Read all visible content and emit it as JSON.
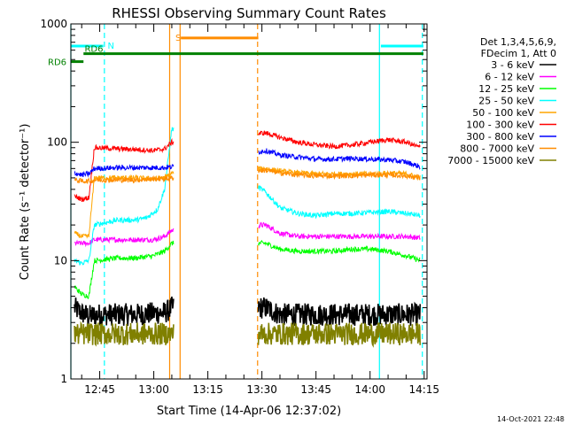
{
  "chart_data": {
    "type": "line",
    "title": "RHESSI Observing Summary Count Rates",
    "xlabel": "Start Time (14-Apr-06 12:37:02)",
    "ylabel": "Count Rate (s⁻¹ detector⁻¹)",
    "yscale": "log",
    "ylim": [
      1,
      1000
    ],
    "xlim_minutes": [
      37.0,
      135.8
    ],
    "x_tick_labels": [
      "12:45",
      "13:00",
      "13:15",
      "13:30",
      "13:45",
      "14:00",
      "14:15"
    ],
    "x_tick_minutes": [
      45,
      60,
      75,
      90,
      105,
      120,
      135
    ],
    "y_tick_labels": [
      "1",
      "10",
      "100",
      "1000"
    ],
    "y_tick_values": [
      1,
      10,
      100,
      1000
    ],
    "legend_header": [
      "Det 1,3,4,5,6,9,",
      "FDecim 1, Att 0"
    ],
    "legend_position": "right",
    "timestamp": "14-Oct-2021 22:48",
    "data_gaps_minutes": [
      [
        65.5,
        89.0
      ]
    ],
    "series": [
      {
        "name": "3 - 6 keV",
        "color": "#000000",
        "x": [
          38,
          40,
          42,
          45,
          50,
          55,
          60,
          63,
          65,
          91,
          95,
          100,
          105,
          110,
          115,
          120,
          125,
          130,
          134
        ],
        "y": [
          4.0,
          3.6,
          3.4,
          3.5,
          3.5,
          3.5,
          3.6,
          3.6,
          4.0,
          4.0,
          3.5,
          3.5,
          3.5,
          3.5,
          3.5,
          3.5,
          3.5,
          3.5,
          3.5
        ]
      },
      {
        "name": "6 - 12 keV",
        "color": "#ff00ff",
        "x": [
          38,
          42,
          43.5,
          50,
          55,
          60,
          63,
          65,
          91,
          95,
          100,
          105,
          110,
          115,
          120,
          125,
          130,
          134
        ],
        "y": [
          14,
          14,
          15,
          15,
          15,
          15,
          16,
          18,
          20,
          17,
          16,
          16,
          16,
          16,
          16,
          16,
          16,
          15.5
        ]
      },
      {
        "name": "12 - 25 keV",
        "color": "#00ff00",
        "x": [
          38,
          40,
          42,
          43.5,
          50,
          55,
          60,
          63,
          65,
          91,
          95,
          100,
          105,
          110,
          115,
          120,
          125,
          130,
          134
        ],
        "y": [
          6,
          5.2,
          5.0,
          10,
          10.5,
          10.5,
          11,
          12,
          14,
          14,
          12.5,
          12,
          12,
          12,
          12.5,
          12.5,
          12,
          11,
          10
        ]
      },
      {
        "name": "25 - 50 keV",
        "color": "#00ffff",
        "x": [
          38,
          40,
          42,
          43.5,
          50,
          55,
          58,
          61,
          63,
          65,
          91,
          95,
          100,
          105,
          110,
          115,
          120,
          125,
          130,
          134
        ],
        "y": [
          10,
          9.5,
          10,
          20,
          22,
          22,
          23,
          27,
          40,
          130,
          38,
          28,
          25,
          24,
          25,
          25,
          25.5,
          26,
          25,
          24
        ]
      },
      {
        "name": "50 - 100 keV",
        "color": "#ffa500",
        "x": [
          38,
          40,
          42,
          43.5,
          50,
          55,
          60,
          63,
          65,
          91,
          95,
          100,
          105,
          110,
          115,
          120,
          125,
          130,
          134
        ],
        "y": [
          17,
          16,
          16,
          50,
          50,
          50,
          49,
          50,
          55,
          60,
          57,
          55,
          54,
          54,
          54,
          54,
          55,
          54,
          50
        ]
      },
      {
        "name": "100 - 300 keV",
        "color": "#ff0000",
        "x": [
          38,
          40,
          42,
          43.5,
          50,
          55,
          60,
          63,
          65,
          91,
          95,
          100,
          105,
          110,
          115,
          120,
          125,
          130,
          134
        ],
        "y": [
          35,
          33,
          34,
          90,
          88,
          87,
          85,
          88,
          100,
          120,
          110,
          100,
          95,
          92,
          95,
          100,
          105,
          100,
          90
        ]
      },
      {
        "name": "300 - 800 keV",
        "color": "#0000ff",
        "x": [
          38,
          40,
          42,
          43.5,
          50,
          55,
          60,
          63,
          65,
          91,
          95,
          100,
          105,
          110,
          115,
          120,
          125,
          130,
          134
        ],
        "y": [
          55,
          53,
          54,
          60,
          61,
          61,
          61,
          61,
          62,
          85,
          78,
          75,
          72,
          72,
          73,
          72,
          71,
          68,
          62
        ]
      },
      {
        "name": "800 - 7000 keV",
        "color": "#ff8c00",
        "x": [
          38,
          40,
          42,
          43.5,
          50,
          55,
          60,
          63,
          65,
          91,
          95,
          100,
          105,
          110,
          115,
          120,
          125,
          130,
          134
        ],
        "y": [
          48,
          47,
          47,
          48,
          48,
          48,
          49,
          49,
          50,
          58,
          55,
          53,
          52,
          52,
          52,
          53,
          53,
          52,
          50
        ]
      },
      {
        "name": "7000 - 15000 keV",
        "color": "#808000",
        "x": [
          38,
          40,
          42,
          45,
          50,
          55,
          60,
          63,
          65,
          91,
          95,
          100,
          105,
          110,
          115,
          120,
          125,
          130,
          134
        ],
        "y": [
          2.4,
          2.4,
          2.4,
          2.4,
          2.4,
          2.4,
          2.4,
          2.4,
          2.4,
          2.4,
          2.4,
          2.4,
          2.4,
          2.4,
          2.4,
          2.4,
          2.4,
          2.4,
          2.4
        ]
      }
    ],
    "state_bars": [
      {
        "label": "N",
        "color": "#00ffff",
        "y": 650,
        "segments": [
          [
            37.0,
            46.0
          ],
          [
            123.0,
            134.8
          ]
        ]
      },
      {
        "label": "S",
        "color": "#ff8c00",
        "y": 760,
        "segments": [
          [
            67.5,
            89.0
          ]
        ]
      },
      {
        "label": "RD6",
        "color": "#008000",
        "y": 560,
        "segments": [
          [
            40.5,
            134.8
          ]
        ]
      },
      {
        "label": "RD6",
        "color": "#008000",
        "y": 480,
        "segments": [
          [
            37.0,
            40.5
          ]
        ]
      }
    ],
    "vlines": [
      {
        "x": 37.0,
        "color": "#00ffff",
        "dash": false
      },
      {
        "x": 46.3,
        "color": "#00ffff",
        "dash": true
      },
      {
        "x": 64.4,
        "color": "#ff8c00",
        "dash": false
      },
      {
        "x": 67.3,
        "color": "#ff8c00",
        "dash": false
      },
      {
        "x": 88.8,
        "color": "#ff8c00",
        "dash": true
      },
      {
        "x": 122.6,
        "color": "#00ffff",
        "dash": false
      },
      {
        "x": 134.5,
        "color": "#00ffff",
        "dash": true
      }
    ]
  }
}
